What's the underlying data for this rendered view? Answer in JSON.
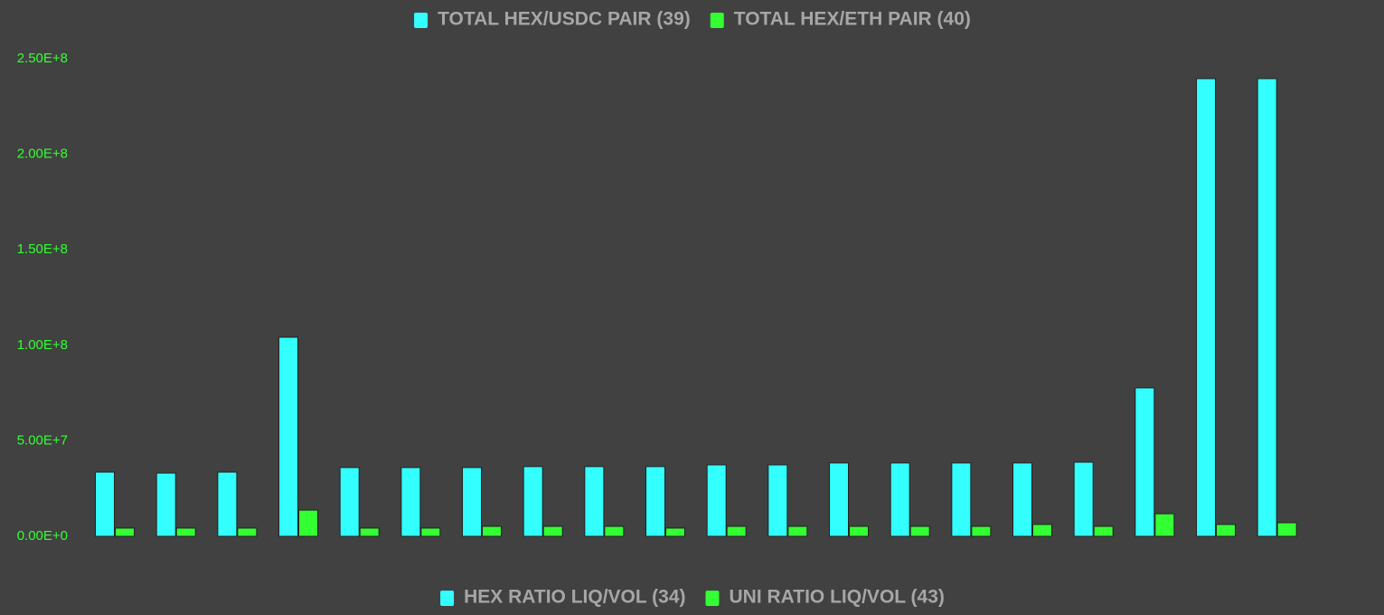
{
  "chart_data": [
    {
      "type": "bar",
      "categories": [
        null,
        null,
        null,
        null,
        null,
        null,
        null,
        null,
        null,
        null,
        null,
        null,
        null,
        null,
        null,
        null,
        null,
        null,
        null,
        null
      ],
      "series": [
        {
          "name": "TOTAL HEX/USDC PAIR (39)",
          "color": "#33ffff",
          "values": [
            33600000,
            33100000,
            33600000,
            104200000,
            36000000,
            36000000,
            36000000,
            36500000,
            36500000,
            36500000,
            37400000,
            37400000,
            38400000,
            38400000,
            38400000,
            38400000,
            38800000,
            77700000,
            239600000,
            239600000
          ]
        },
        {
          "name": "TOTAL HEX/ETH PAIR (40)",
          "color": "#33ff33",
          "values": [
            4300000,
            4300000,
            4300000,
            13700000,
            4300000,
            4300000,
            5200000,
            5200000,
            5200000,
            4300000,
            5200000,
            5200000,
            5200000,
            5200000,
            5200000,
            6200000,
            5200000,
            11800000,
            6200000,
            7100000
          ]
        }
      ],
      "ylim": [
        0,
        250000000
      ],
      "yticks": [
        {
          "value": 0,
          "label": "0.00E+0"
        },
        {
          "value": 50000000,
          "label": "5.00E+7"
        },
        {
          "value": 100000000,
          "label": "1.00E+8"
        },
        {
          "value": 150000000,
          "label": "1.50E+8"
        },
        {
          "value": 200000000,
          "label": "2.00E+8"
        },
        {
          "value": 250000000,
          "label": "2.50E+8"
        }
      ],
      "grid": false
    },
    {
      "type": "bar",
      "series": [
        {
          "name": "HEX RATIO LIQ/VOL (34)",
          "color": "#33ffff",
          "values": []
        },
        {
          "name": "UNI RATIO LIQ/VOL (43)",
          "color": "#33ff33",
          "values": []
        }
      ]
    }
  ]
}
